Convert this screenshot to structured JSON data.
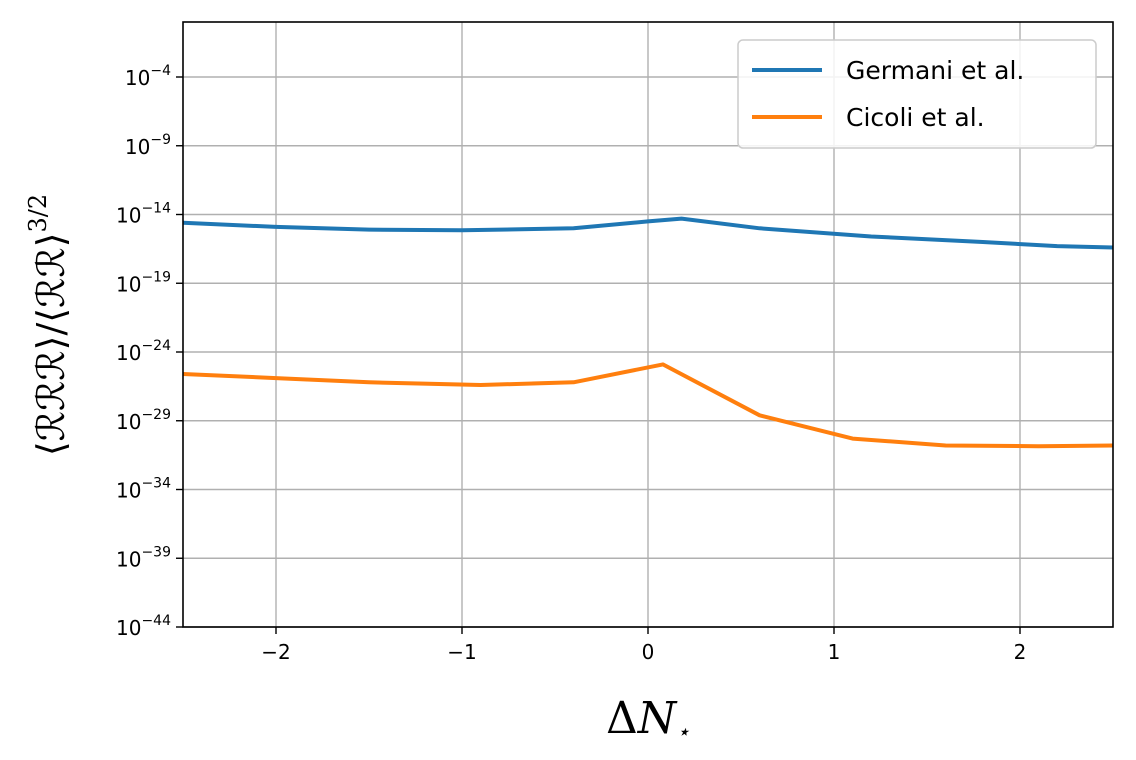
{
  "chart_data": {
    "type": "line",
    "title": "",
    "xlabel": "ΔN⋆",
    "ylabel": "⟨ℛℛℛ⟩/⟨ℛℛ⟩^3/2",
    "xlim": [
      -2.5,
      2.5
    ],
    "ylog_lim": [
      -44,
      0
    ],
    "yscale": "log",
    "grid": true,
    "legend_position": "top-right",
    "xticks": [
      -2,
      -1,
      0,
      1,
      2
    ],
    "xtick_labels": [
      "−2",
      "−1",
      "0",
      "1",
      "2"
    ],
    "yticks_exponent": [
      -4,
      -9,
      -14,
      -19,
      -24,
      -29,
      -34,
      -39,
      -44
    ],
    "ytick_labels": [
      {
        "base": "10",
        "exp": "−4"
      },
      {
        "base": "10",
        "exp": "−9"
      },
      {
        "base": "10",
        "exp": "−14"
      },
      {
        "base": "10",
        "exp": "−19"
      },
      {
        "base": "10",
        "exp": "−24"
      },
      {
        "base": "10",
        "exp": "−29"
      },
      {
        "base": "10",
        "exp": "−34"
      },
      {
        "base": "10",
        "exp": "−39"
      },
      {
        "base": "10",
        "exp": "−44"
      }
    ],
    "series": [
      {
        "name": "Germani et al.",
        "color": "#1f77b4",
        "x": [
          -2.5,
          -2.0,
          -1.5,
          -1.0,
          -0.4,
          0.0,
          0.18,
          0.6,
          1.2,
          1.8,
          2.2,
          2.5
        ],
        "log10_y": [
          -14.6,
          -14.9,
          -15.1,
          -15.15,
          -15.0,
          -14.5,
          -14.3,
          -15.0,
          -15.6,
          -16.0,
          -16.3,
          -16.4
        ]
      },
      {
        "name": "Cicoli et al.",
        "color": "#ff7f0e",
        "x": [
          -2.5,
          -2.0,
          -1.5,
          -0.9,
          -0.4,
          0.08,
          0.6,
          1.1,
          1.6,
          2.1,
          2.5
        ],
        "log10_y": [
          -25.6,
          -25.9,
          -26.2,
          -26.4,
          -26.2,
          -24.9,
          -28.6,
          -30.3,
          -30.8,
          -30.85,
          -30.8
        ]
      }
    ]
  }
}
